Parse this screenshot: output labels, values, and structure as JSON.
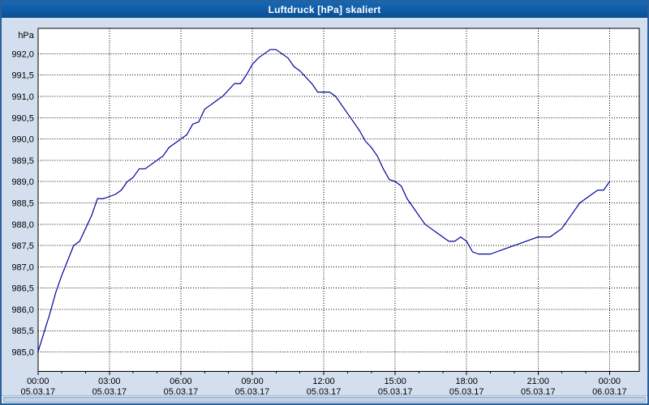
{
  "window": {
    "title": "Luftdruck [hPa] skaliert"
  },
  "colors": {
    "title_bar_top": "#1668b5",
    "title_bar_bottom": "#0a4f94",
    "title_text": "#ffffff",
    "background": "#d3dfef",
    "plot_bg": "#ffffff",
    "grid": "#000000",
    "line": "#000099",
    "border": "#2a6099"
  },
  "chart_data": {
    "type": "line",
    "title": "Luftdruck [hPa] skaliert",
    "xlabel": "",
    "ylabel": "hPa",
    "ylim": [
      984.55,
      992.6
    ],
    "xlim_hours": [
      0,
      25.25
    ],
    "grid": "dashed",
    "legend": "none",
    "y_ticks": [
      {
        "value": 985.0,
        "label": "985,0"
      },
      {
        "value": 985.5,
        "label": "985,5"
      },
      {
        "value": 986.0,
        "label": "986,0"
      },
      {
        "value": 986.5,
        "label": "986,5"
      },
      {
        "value": 987.0,
        "label": "987,0"
      },
      {
        "value": 987.5,
        "label": "987,5"
      },
      {
        "value": 988.0,
        "label": "988,0"
      },
      {
        "value": 988.5,
        "label": "988,5"
      },
      {
        "value": 989.0,
        "label": "989,0"
      },
      {
        "value": 989.5,
        "label": "989,5"
      },
      {
        "value": 990.0,
        "label": "990,0"
      },
      {
        "value": 990.5,
        "label": "990,5"
      },
      {
        "value": 991.0,
        "label": "991,0"
      },
      {
        "value": 991.5,
        "label": "991,5"
      },
      {
        "value": 992.0,
        "label": "992,0"
      }
    ],
    "x_ticks": [
      {
        "hour": 0,
        "time": "00:00",
        "date": "05.03.17"
      },
      {
        "hour": 3,
        "time": "03:00",
        "date": "05.03.17"
      },
      {
        "hour": 6,
        "time": "06:00",
        "date": "05.03.17"
      },
      {
        "hour": 9,
        "time": "09:00",
        "date": "05.03.17"
      },
      {
        "hour": 12,
        "time": "12:00",
        "date": "05.03.17"
      },
      {
        "hour": 15,
        "time": "15:00",
        "date": "05.03.17"
      },
      {
        "hour": 18,
        "time": "18:00",
        "date": "05.03.17"
      },
      {
        "hour": 21,
        "time": "21:00",
        "date": "05.03.17"
      },
      {
        "hour": 24,
        "time": "00:00",
        "date": "06.03.17"
      }
    ],
    "x_start_hour": 0,
    "x_step_hour": 0.25,
    "series": [
      {
        "name": "Luftdruck",
        "color": "#000099",
        "values": [
          985.0,
          985.45,
          985.9,
          986.4,
          986.8,
          987.15,
          987.5,
          987.6,
          987.9,
          988.2,
          988.6,
          988.6,
          988.65,
          988.7,
          988.8,
          989.0,
          989.1,
          989.3,
          989.3,
          989.4,
          989.5,
          989.6,
          989.8,
          989.9,
          990.0,
          990.1,
          990.35,
          990.4,
          990.7,
          990.8,
          990.9,
          991.0,
          991.15,
          991.3,
          991.3,
          991.5,
          991.75,
          991.9,
          992.0,
          992.1,
          992.1,
          992.0,
          991.9,
          991.7,
          991.6,
          991.45,
          991.3,
          991.1,
          991.1,
          991.1,
          991.0,
          990.8,
          990.6,
          990.4,
          990.2,
          989.95,
          989.8,
          989.6,
          989.3,
          989.05,
          989.0,
          988.9,
          988.6,
          988.4,
          988.2,
          988.0,
          987.9,
          987.8,
          987.7,
          987.6,
          987.6,
          987.7,
          987.6,
          987.35,
          987.3,
          987.3,
          987.3,
          987.35,
          987.4,
          987.45,
          987.5,
          987.55,
          987.6,
          987.65,
          987.7,
          987.7,
          987.7,
          987.8,
          987.9,
          988.1,
          988.3,
          988.5,
          988.6,
          988.7,
          988.8,
          988.8,
          989.0
        ]
      }
    ]
  }
}
